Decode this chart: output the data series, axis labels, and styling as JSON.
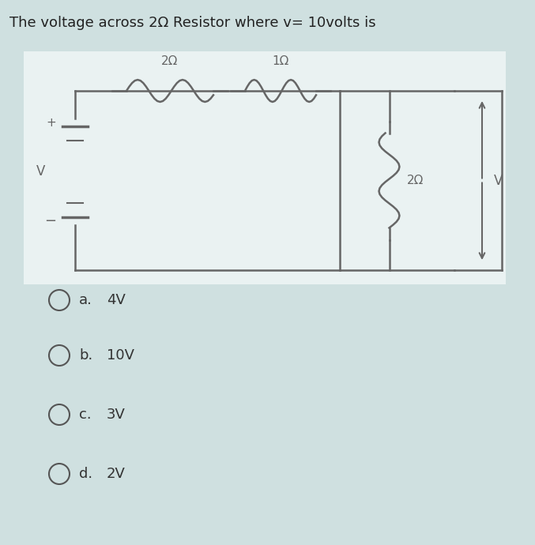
{
  "title": "The voltage across 2Ω Resistor where v= 10volts is",
  "title_fontsize": 13,
  "bg_color": "#cfe0e0",
  "circuit_bg": "#eaf2f2",
  "line_color": "#666666",
  "line_width": 1.8,
  "choices": [
    "a.   4V",
    "b.   10V",
    "c.   3V",
    "d.   2V"
  ],
  "choice_fontsize": 13,
  "resistor_label_2ohm_top": "2Ω",
  "resistor_label_1ohm": "1Ω",
  "resistor_label_2ohm_right": "2Ω",
  "v_source_label": "V",
  "v_measure_label": "V",
  "plus_label": "+",
  "minus_label": "−"
}
